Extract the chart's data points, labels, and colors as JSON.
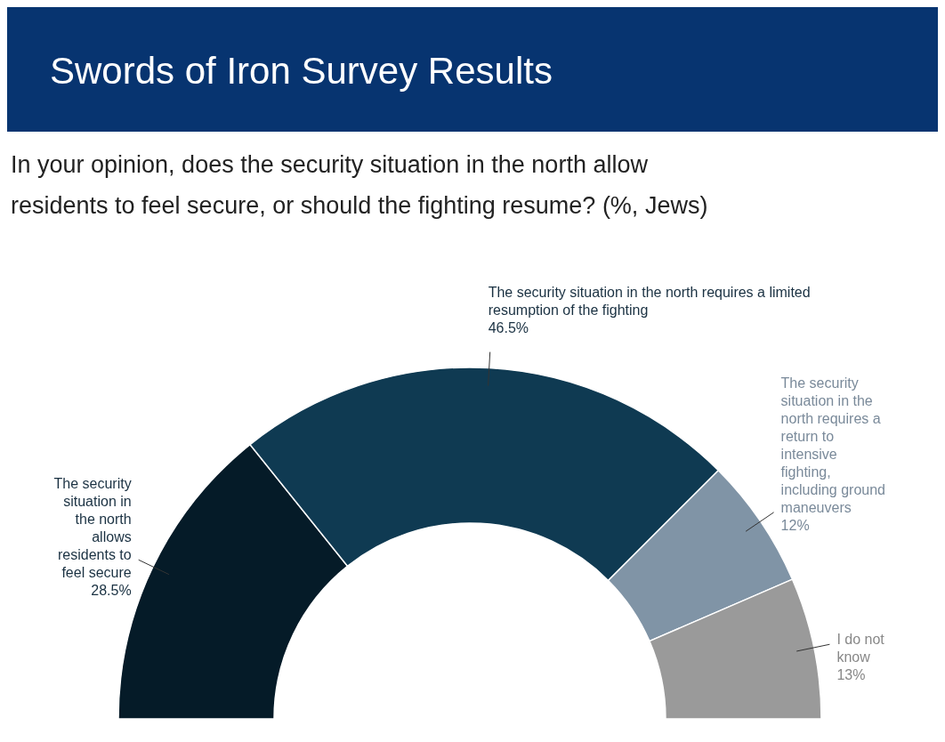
{
  "chart_data": {
    "type": "donut",
    "title": "Swords of Iron Survey Results",
    "subtitle": "In your opinion, does the security situation in the north allow residents to feel secure, or should the fighting resume? (%, Jews)",
    "categories": [
      "The security situation in the north allows residents to feel secure",
      "The security situation in the north requires a limited resumption of the fighting",
      "The security situation in the north requires a return to intensive fighting, including ground maneuvers",
      "I do not know"
    ],
    "values": [
      28.5,
      46.5,
      12,
      13
    ],
    "value_labels": [
      "28.5%",
      "46.5%",
      "12%",
      "13%"
    ],
    "colors": [
      "#051b28",
      "#0f3a52",
      "#8094a6",
      "#9a9a9a"
    ]
  }
}
